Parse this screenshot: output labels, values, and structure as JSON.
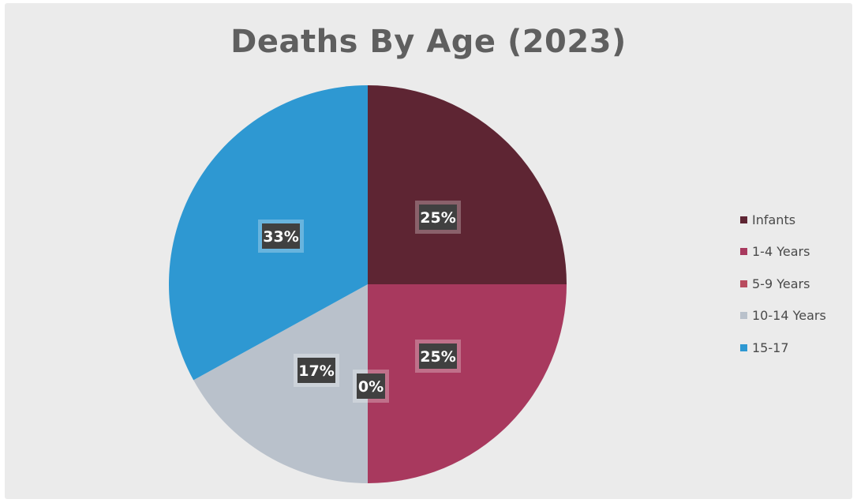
{
  "chart_data": {
    "type": "pie",
    "title": "Deaths By Age (2023)",
    "categories": [
      "Infants",
      "1-4 Years",
      "5-9 Years",
      "10-14 Years",
      "15-17"
    ],
    "values": [
      25,
      25,
      0,
      17,
      33
    ],
    "value_labels": [
      "25%",
      "25%",
      "0%",
      "17%",
      "33%"
    ],
    "colors": [
      "#5e2533",
      "#a8395e",
      "#b84b5e",
      "#b9c1cb",
      "#2e98d2"
    ],
    "legend_position": "right"
  }
}
